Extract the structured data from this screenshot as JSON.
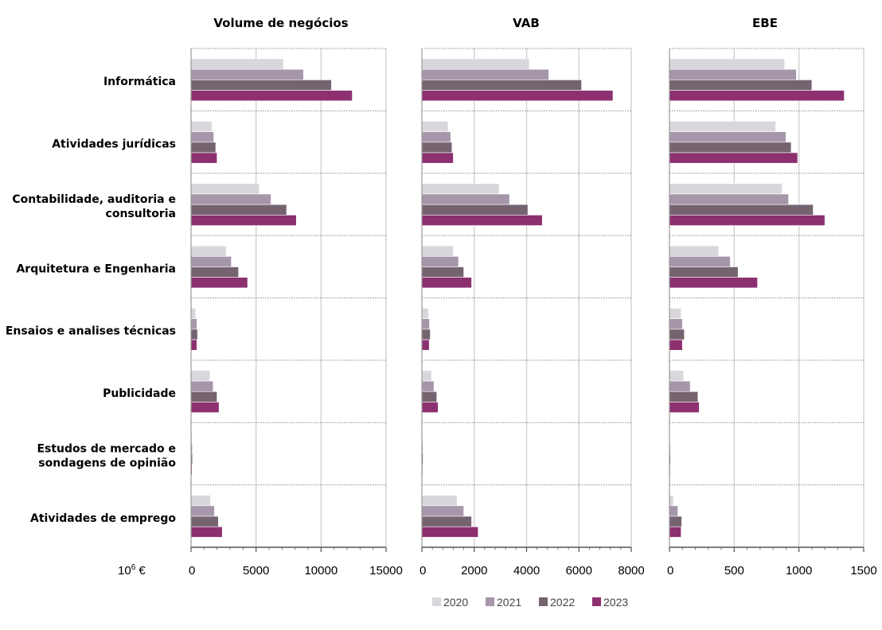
{
  "unit_label": {
    "base": "10",
    "exp": "6",
    "suffix": " €"
  },
  "colors": {
    "2020": "#d9d6dc",
    "2021": "#a596a9",
    "2022": "#756470",
    "2023": "#8c3070"
  },
  "chart_data": [
    {
      "type": "bar",
      "orientation": "horizontal",
      "title": "Volume de negócios",
      "categories": [
        [
          "Informática"
        ],
        [
          "Atividades jurídicas"
        ],
        [
          "Contabilidade, auditoria e",
          "consultoria"
        ],
        [
          "Arquitetura e Engenharia"
        ],
        [
          "Ensaios e analises técnicas"
        ],
        [
          "Publicidade"
        ],
        [
          "Estudos de mercado e",
          "sondagens de opinião"
        ],
        [
          "Atividades de emprego"
        ]
      ],
      "xlim": [
        0,
        15000
      ],
      "xticks": [
        0,
        5000,
        10000,
        15000
      ],
      "grid": true,
      "series": [
        {
          "name": "2020",
          "values": [
            7100,
            1600,
            5250,
            2700,
            350,
            1450,
            80,
            1500
          ]
        },
        {
          "name": "2021",
          "values": [
            8650,
            1750,
            6150,
            3100,
            450,
            1700,
            100,
            1800
          ]
        },
        {
          "name": "2022",
          "values": [
            10800,
            1900,
            7350,
            3650,
            500,
            2000,
            110,
            2100
          ]
        },
        {
          "name": "2023",
          "values": [
            12400,
            2000,
            8100,
            4350,
            450,
            2150,
            80,
            2400
          ]
        }
      ]
    },
    {
      "type": "bar",
      "orientation": "horizontal",
      "title": "VAB",
      "xlim": [
        0,
        8000
      ],
      "xticks": [
        0,
        2000,
        4000,
        6000,
        8000
      ],
      "grid": true,
      "series": [
        {
          "name": "2020",
          "values": [
            4100,
            1000,
            2950,
            1200,
            250,
            370,
            30,
            1350
          ]
        },
        {
          "name": "2021",
          "values": [
            4850,
            1100,
            3350,
            1400,
            290,
            460,
            40,
            1600
          ]
        },
        {
          "name": "2022",
          "values": [
            6100,
            1150,
            4050,
            1600,
            320,
            570,
            45,
            1900
          ]
        },
        {
          "name": "2023",
          "values": [
            7300,
            1200,
            4600,
            1900,
            280,
            620,
            30,
            2150
          ]
        }
      ]
    },
    {
      "type": "bar",
      "orientation": "horizontal",
      "title": "EBE",
      "xlim": [
        0,
        1500
      ],
      "xticks": [
        0,
        500,
        1000,
        1500
      ],
      "grid": true,
      "series": [
        {
          "name": "2020",
          "values": [
            890,
            820,
            870,
            380,
            90,
            110,
            5,
            30
          ]
        },
        {
          "name": "2021",
          "values": [
            980,
            900,
            920,
            470,
            100,
            160,
            7,
            65
          ]
        },
        {
          "name": "2022",
          "values": [
            1100,
            940,
            1110,
            530,
            115,
            220,
            8,
            95
          ]
        },
        {
          "name": "2023",
          "values": [
            1350,
            990,
            1200,
            680,
            100,
            230,
            6,
            90
          ]
        }
      ]
    }
  ],
  "legend": {
    "placement": "bottom-center",
    "items": [
      "2020",
      "2021",
      "2022",
      "2023"
    ]
  }
}
